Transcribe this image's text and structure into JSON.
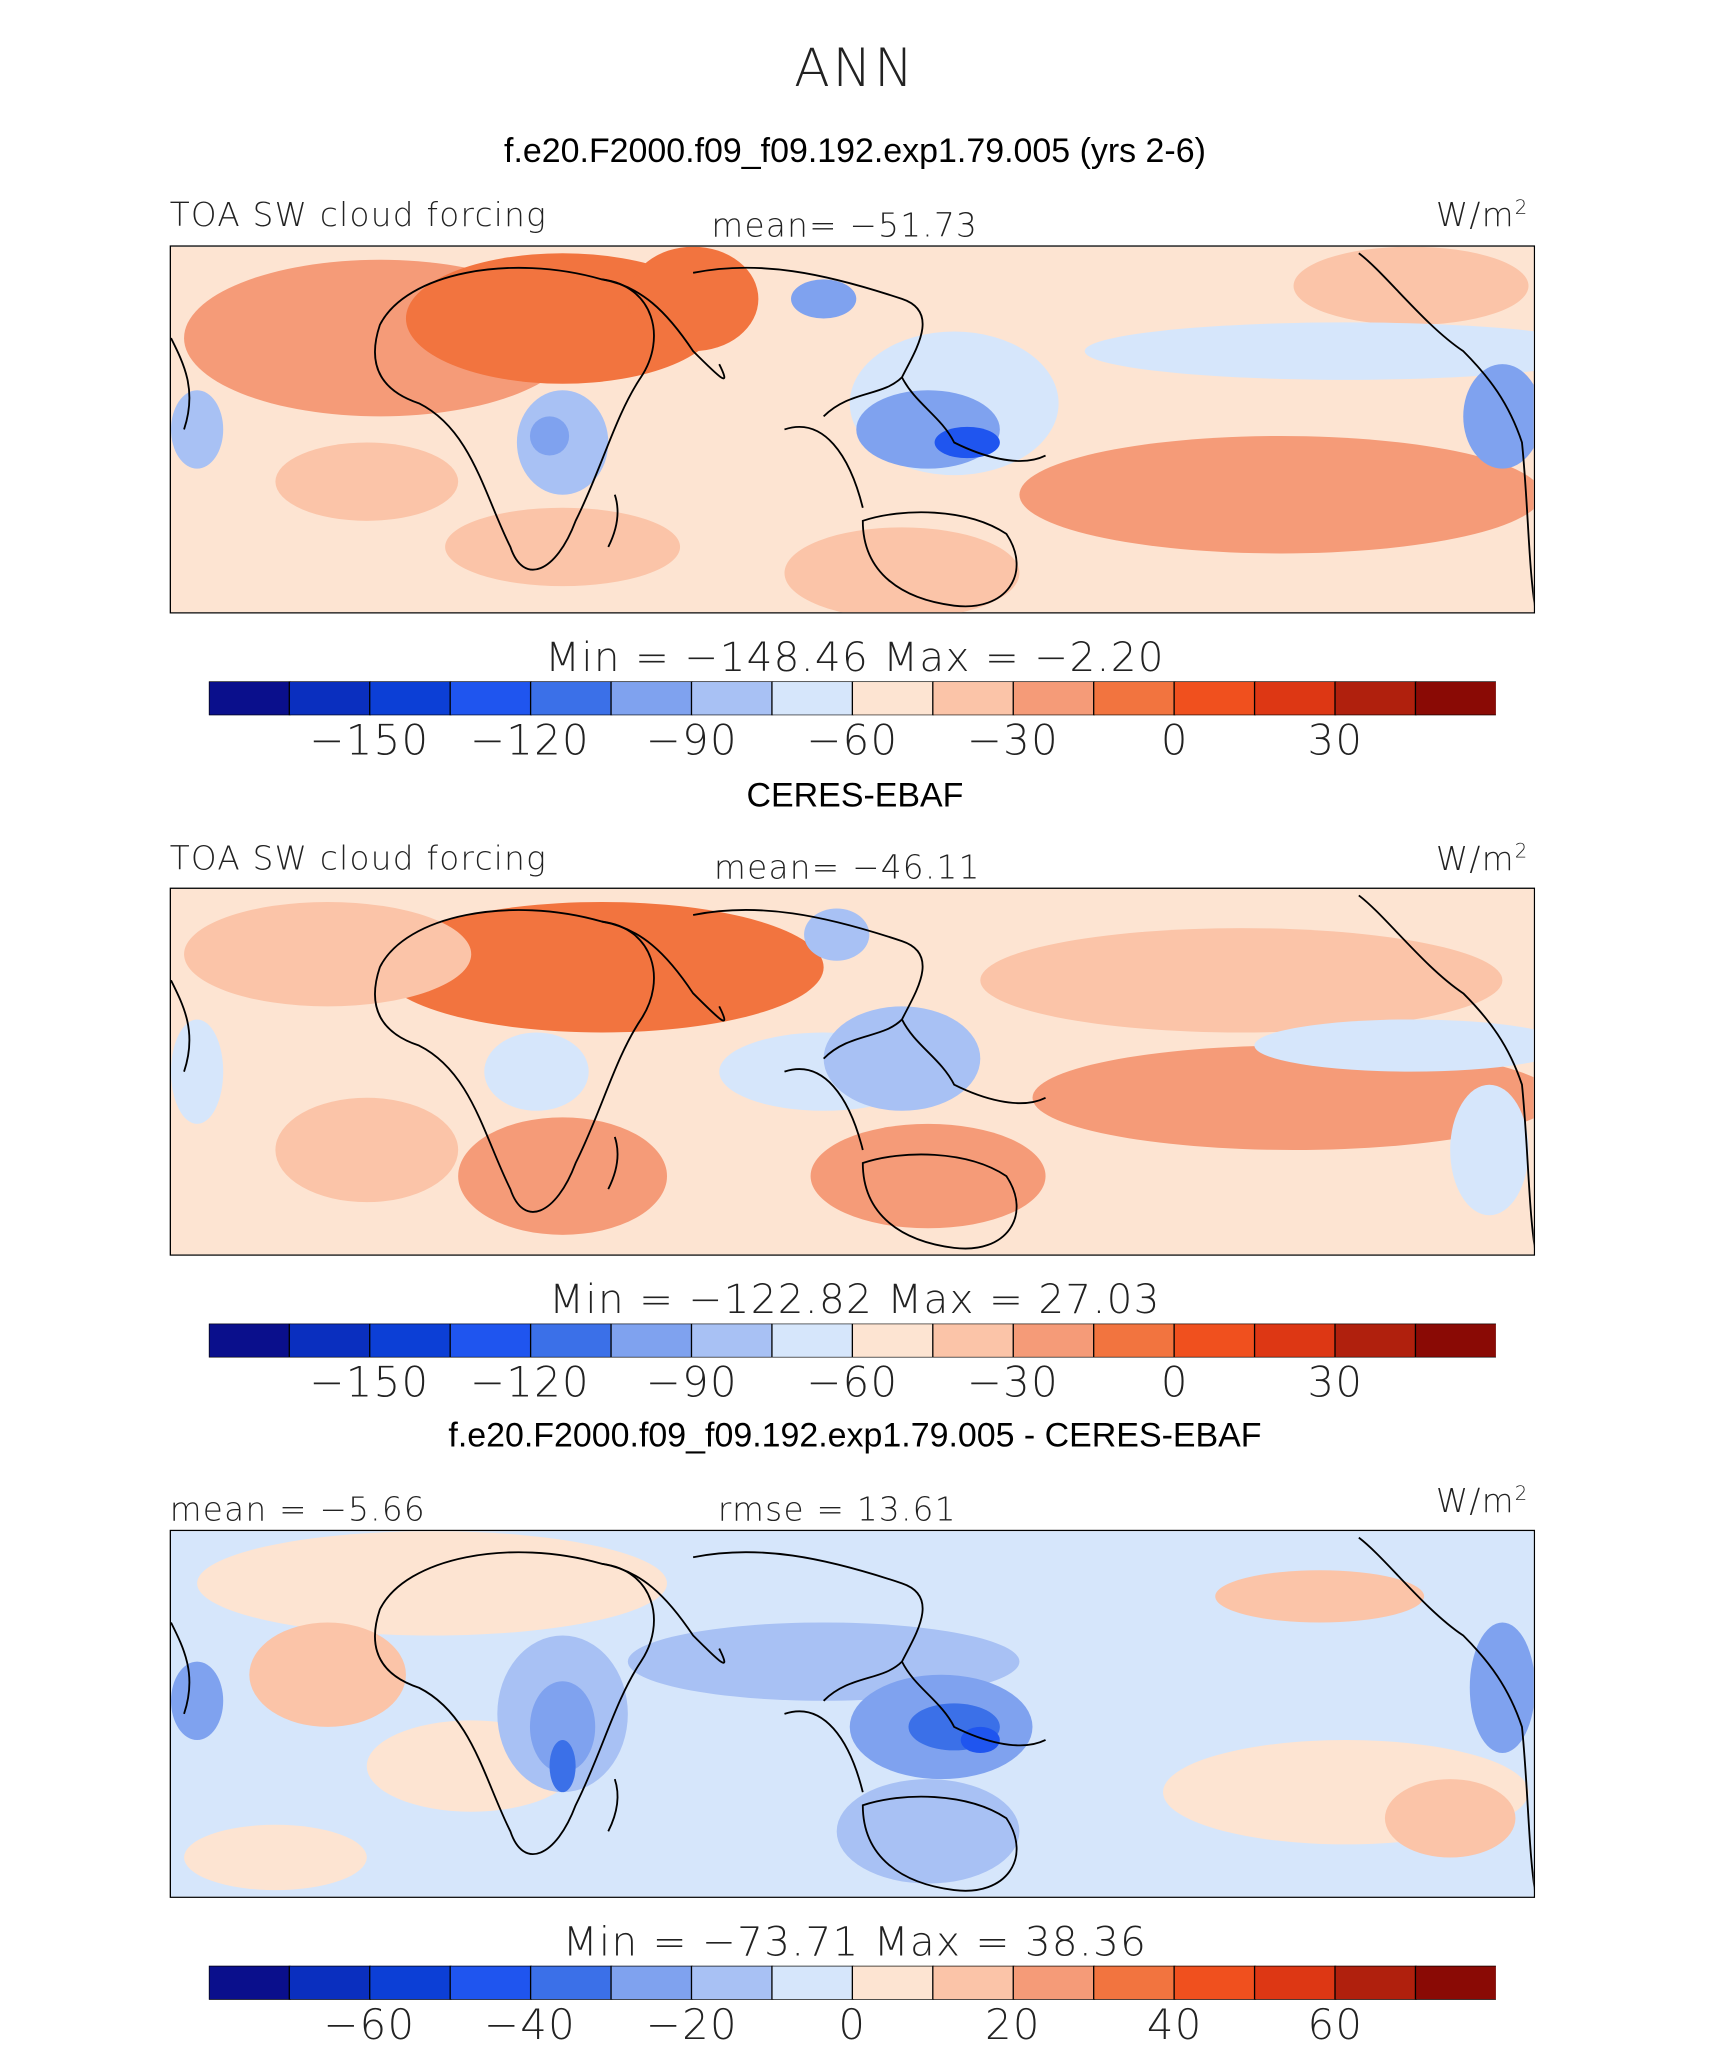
{
  "page_title": "ANN",
  "panels": [
    {
      "title": "f.e20.F2000.f09_f09.192.exp1.79.005 (yrs 2-6)",
      "left_label": "TOA SW cloud forcing",
      "center_label": "mean= −51.73",
      "units": "W/m",
      "units_sup": "2",
      "minmax": "Min = −148.46 Max =  −2.20",
      "ticks": [
        "−150",
        "−120",
        "−90",
        "−60",
        "−30",
        "0",
        "30"
      ]
    },
    {
      "title": "CERES-EBAF",
      "left_label": "TOA SW cloud forcing",
      "center_label": "mean= −46.11",
      "units": "W/m",
      "units_sup": "2",
      "minmax": "Min = −122.82 Max =  27.03",
      "ticks": [
        "−150",
        "−120",
        "−90",
        "−60",
        "−30",
        "0",
        "30"
      ]
    },
    {
      "title": "f.e20.F2000.f09_f09.192.exp1.79.005 - CERES-EBAF",
      "left_label": "mean =  −5.66",
      "center_label": "rmse =  13.61",
      "units": "W/m",
      "units_sup": "2",
      "minmax": "Min = −73.71 Max =  38.36",
      "ticks": [
        "−60",
        "−40",
        "−20",
        "0",
        "20",
        "40",
        "60"
      ]
    }
  ],
  "colors": {
    "colorbar": [
      "#0a0f8c",
      "#0a2fbf",
      "#0c3fd6",
      "#1f55ef",
      "#3b70e8",
      "#7fa2ef",
      "#a8c1f4",
      "#d6e6fb",
      "#fde4d2",
      "#fbc4a8",
      "#f59b78",
      "#f2743f",
      "#f0501e",
      "#dd3714",
      "#b0200d",
      "#8a0a05"
    ],
    "coastline": "#000000"
  },
  "chart_data": [
    {
      "type": "heatmap",
      "title": "f.e20.F2000.f09_f09.192.exp1.79.005 (yrs 2-6)",
      "variable": "TOA SW cloud forcing",
      "units": "W/m2",
      "mean": -51.73,
      "min": -148.46,
      "max": -2.2,
      "colorbar_ticks": [
        -150,
        -120,
        -90,
        -60,
        -30,
        0,
        30
      ],
      "colorbar_range": [
        -165,
        45
      ],
      "colorbar_levels": 16
    },
    {
      "type": "heatmap",
      "title": "CERES-EBAF",
      "variable": "TOA SW cloud forcing",
      "units": "W/m2",
      "mean": -46.11,
      "min": -122.82,
      "max": 27.03,
      "colorbar_ticks": [
        -150,
        -120,
        -90,
        -60,
        -30,
        0,
        30
      ],
      "colorbar_range": [
        -165,
        45
      ],
      "colorbar_levels": 16
    },
    {
      "type": "heatmap",
      "title": "f.e20.F2000.f09_f09.192.exp1.79.005 - CERES-EBAF",
      "units": "W/m2",
      "mean": -5.66,
      "rmse": 13.61,
      "min": -73.71,
      "max": 38.36,
      "colorbar_ticks": [
        -60,
        -40,
        -20,
        0,
        20,
        40,
        60
      ],
      "colorbar_range": [
        -70,
        70
      ],
      "colorbar_levels": 16
    }
  ]
}
